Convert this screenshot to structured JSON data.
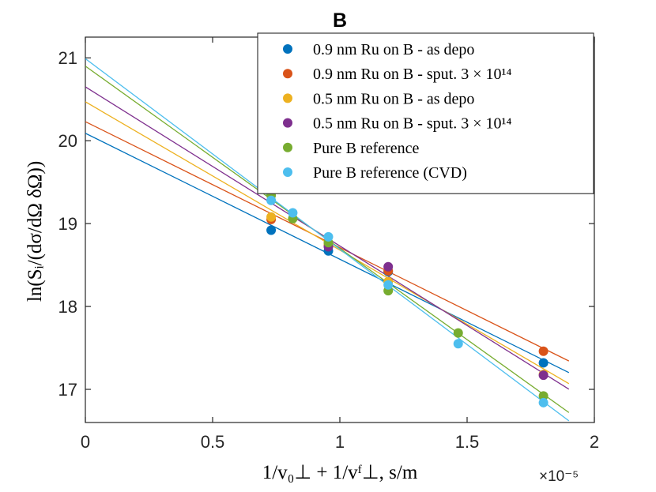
{
  "chart_data": {
    "type": "scatter",
    "title": "B",
    "xlabel": "1/v₀⊥ + 1/vᶠ⊥, s/m",
    "ylabel": "ln(Sᵢ/(dσ/dΩ δΩ))",
    "x_exponent_label": "×10⁻⁵",
    "xlim": [
      0,
      2
    ],
    "ylim": [
      16.6,
      21.25
    ],
    "xticks": [
      0,
      0.5,
      1,
      1.5,
      2
    ],
    "xtick_labels": [
      "0",
      "0.5",
      "1",
      "1.5",
      "2"
    ],
    "yticks": [
      17,
      18,
      19,
      20,
      21
    ],
    "ytick_labels": [
      "17",
      "18",
      "19",
      "20",
      "21"
    ],
    "grid": false,
    "legend_position": "top-right",
    "fit_x_range": [
      0,
      1.9
    ],
    "series": [
      {
        "name": "0.9 nm Ru on B - as depo",
        "color": "#0072BD",
        "x": [
          0.73,
          0.955,
          1.19,
          1.8
        ],
        "y": [
          18.92,
          18.67,
          18.42,
          17.32
        ],
        "fit_intercept": 20.09,
        "fit_slope": -1.52
      },
      {
        "name": "0.9 nm Ru on B - sput. 3 × 10¹⁴",
        "color": "#D95319",
        "x": [
          0.73,
          0.955,
          1.19,
          1.8
        ],
        "y": [
          19.05,
          18.74,
          18.43,
          17.46
        ],
        "fit_intercept": 20.23,
        "fit_slope": -1.52
      },
      {
        "name": "0.5 nm Ru on B - as depo",
        "color": "#EDB120",
        "x": [
          0.73,
          0.955,
          1.19,
          1.8
        ],
        "y": [
          19.08,
          18.76,
          18.3,
          17.18
        ],
        "fit_intercept": 20.47,
        "fit_slope": -1.79
      },
      {
        "name": "0.5 nm Ru on B - sput. 3 × 10¹⁴",
        "color": "#7E2F8E",
        "x": [
          0.955,
          1.19,
          1.8
        ],
        "y": [
          18.72,
          18.48,
          17.17
        ],
        "fit_intercept": 20.65,
        "fit_slope": -1.92
      },
      {
        "name": "Pure B reference",
        "color": "#77AC30",
        "x": [
          0.73,
          0.815,
          0.955,
          1.19,
          1.465,
          1.8
        ],
        "y": [
          19.34,
          19.06,
          18.77,
          18.19,
          17.68,
          16.92
        ],
        "fit_intercept": 20.9,
        "fit_slope": -2.2
      },
      {
        "name": "Pure B reference (CVD)",
        "color": "#4DBEEE",
        "x": [
          0.73,
          0.815,
          0.955,
          1.19,
          1.465,
          1.8
        ],
        "y": [
          19.28,
          19.13,
          18.84,
          18.26,
          17.55,
          16.84
        ],
        "fit_intercept": 20.99,
        "fit_slope": -2.3
      }
    ]
  }
}
